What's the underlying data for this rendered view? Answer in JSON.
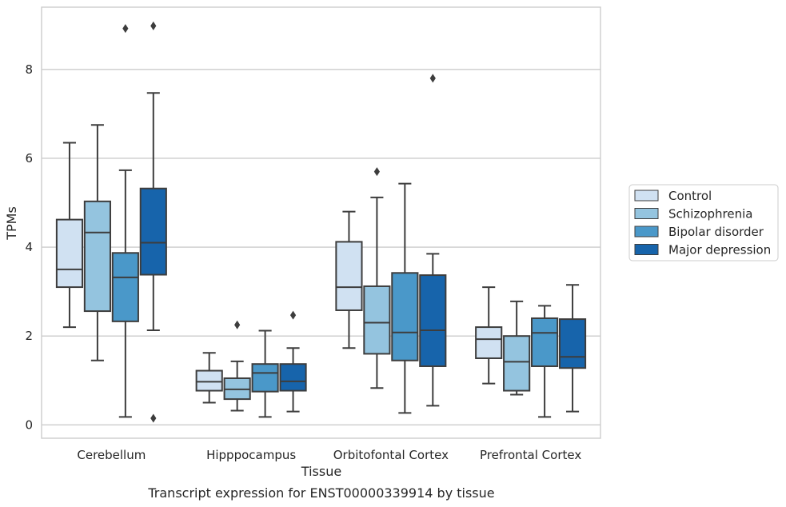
{
  "chart_data": {
    "type": "box",
    "caption": "Transcript expression for ENST00000339914 by tissue",
    "xlabel": "Tissue",
    "ylabel": "TPMs",
    "ylim": [
      -0.3,
      9.4
    ],
    "yticks": [
      0,
      2,
      4,
      6,
      8
    ],
    "ytick_labels": [
      "0",
      "2",
      "4",
      "6",
      "8"
    ],
    "grid": "horizontal",
    "legend_position": "right",
    "categories": [
      "Cerebellum",
      "Hipppocampus",
      "Orbitofontal Cortex",
      "Prefrontal Cortex"
    ],
    "series": [
      {
        "name": "Control",
        "color": "#d0e1f2",
        "boxes": [
          {
            "whislo": 2.2,
            "q1": 3.1,
            "med": 3.5,
            "q3": 4.62,
            "whishi": 6.35,
            "fliers": []
          },
          {
            "whislo": 0.5,
            "q1": 0.77,
            "med": 0.97,
            "q3": 1.22,
            "whishi": 1.62,
            "fliers": []
          },
          {
            "whislo": 1.73,
            "q1": 2.58,
            "med": 3.1,
            "q3": 4.12,
            "whishi": 4.8,
            "fliers": []
          },
          {
            "whislo": 0.93,
            "q1": 1.5,
            "med": 1.93,
            "q3": 2.2,
            "whishi": 3.1,
            "fliers": []
          }
        ]
      },
      {
        "name": "Schizophrenia",
        "color": "#94c4df",
        "boxes": [
          {
            "whislo": 1.45,
            "q1": 2.56,
            "med": 4.33,
            "q3": 5.03,
            "whishi": 6.75,
            "fliers": []
          },
          {
            "whislo": 0.32,
            "q1": 0.58,
            "med": 0.8,
            "q3": 1.05,
            "whishi": 1.43,
            "fliers": [
              2.25
            ]
          },
          {
            "whislo": 0.83,
            "q1": 1.6,
            "med": 2.3,
            "q3": 3.12,
            "whishi": 5.12,
            "fliers": [
              5.7
            ]
          },
          {
            "whislo": 0.68,
            "q1": 0.77,
            "med": 1.42,
            "q3": 2.0,
            "whishi": 2.78,
            "fliers": []
          }
        ]
      },
      {
        "name": "Bipolar disorder",
        "color": "#4a98c9",
        "boxes": [
          {
            "whislo": 0.18,
            "q1": 2.33,
            "med": 3.32,
            "q3": 3.87,
            "whishi": 5.73,
            "fliers": [
              8.92
            ]
          },
          {
            "whislo": 0.18,
            "q1": 0.75,
            "med": 1.17,
            "q3": 1.37,
            "whishi": 2.12,
            "fliers": []
          },
          {
            "whislo": 0.27,
            "q1": 1.45,
            "med": 2.08,
            "q3": 3.42,
            "whishi": 5.43,
            "fliers": []
          },
          {
            "whislo": 0.18,
            "q1": 1.32,
            "med": 2.07,
            "q3": 2.4,
            "whishi": 2.68,
            "fliers": []
          }
        ]
      },
      {
        "name": "Major depression",
        "color": "#1764ab",
        "boxes": [
          {
            "whislo": 2.13,
            "q1": 3.38,
            "med": 4.1,
            "q3": 5.32,
            "whishi": 7.47,
            "fliers": [
              8.98,
              0.15
            ]
          },
          {
            "whislo": 0.3,
            "q1": 0.77,
            "med": 0.98,
            "q3": 1.37,
            "whishi": 1.73,
            "fliers": [
              2.47
            ]
          },
          {
            "whislo": 0.43,
            "q1": 1.32,
            "med": 2.13,
            "q3": 3.37,
            "whishi": 3.85,
            "fliers": [
              7.8
            ]
          },
          {
            "whislo": 0.3,
            "q1": 1.28,
            "med": 1.53,
            "q3": 2.38,
            "whishi": 3.15,
            "fliers": []
          }
        ]
      }
    ]
  }
}
